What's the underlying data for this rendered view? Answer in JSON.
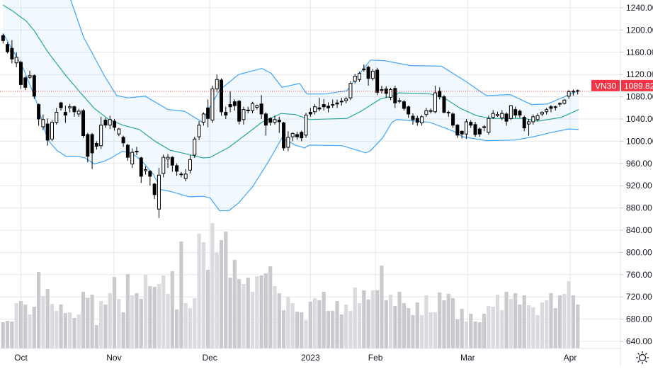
{
  "chart_data": {
    "type": "candlestick",
    "symbol": "VN30",
    "last_price": "1089.82",
    "last_value": 1089.82,
    "ylim": [
      640,
      1240
    ],
    "y_ticks": [
      "1240.00",
      "1200.00",
      "1160.00",
      "1120.00",
      "1080.00",
      "1040.00",
      "1000.00",
      "960.00",
      "920.00",
      "880.00",
      "840.00",
      "800.00",
      "760.00",
      "720.00",
      "680.00",
      "640.00"
    ],
    "y_tick_values": [
      1240,
      1200,
      1160,
      1120,
      1080,
      1040,
      1000,
      960,
      920,
      880,
      840,
      800,
      760,
      720,
      680,
      640
    ],
    "x_ticks": [
      {
        "label": "Oct",
        "index": 4
      },
      {
        "label": "Nov",
        "index": 24.9
      },
      {
        "label": "Dec",
        "index": 46.4
      },
      {
        "label": "2023",
        "index": 69
      },
      {
        "label": "Feb",
        "index": 83.6
      },
      {
        "label": "Mar",
        "index": 104.3
      },
      {
        "label": "Apr",
        "index": 127.3
      }
    ],
    "open": [
      1190,
      1174,
      1167,
      1141,
      1142,
      1114,
      1115,
      1118,
      1066,
      1026,
      1031,
      1004,
      1034,
      1069,
      1052,
      1060,
      1062,
      1049,
      1055,
      1012,
      1012,
      996,
      992,
      1038,
      1029,
      1036,
      1013,
      1007,
      993,
      959,
      982,
      970,
      947,
      946,
      923,
      878,
      942,
      968,
      971,
      956,
      941,
      933,
      948,
      975,
      1008,
      1034,
      1060,
      1038,
      1094,
      1110,
      1052,
      1066,
      1071,
      1072,
      1039,
      1056,
      1055,
      1061,
      1067,
      1049,
      1041,
      1034,
      1038,
      1033,
      989,
      1008,
      1012,
      1016,
      1011,
      1052,
      1053,
      1060,
      1066,
      1063,
      1066,
      1069,
      1072,
      1073,
      1078,
      1108,
      1111,
      1130,
      1133,
      1113,
      1128,
      1093,
      1094,
      1079,
      1095,
      1073,
      1071,
      1062,
      1045,
      1041,
      1033,
      1048,
      1054,
      1053,
      1090,
      1080,
      1052,
      1049,
      1029,
      1018,
      1013,
      1034,
      1030,
      1022,
      1026,
      1016,
      1043,
      1046,
      1042,
      1049,
      1041,
      1057,
      1054,
      1043,
      1031,
      1035,
      1039,
      1049,
      1053,
      1062,
      1062,
      1068,
      1068,
      1081,
      1090,
      1091
    ],
    "high": [
      1193,
      1178,
      1182,
      1160,
      1145,
      1117,
      1127,
      1120,
      1068,
      1048,
      1041,
      1038,
      1060,
      1071,
      1064,
      1067,
      1064,
      1058,
      1058,
      1015,
      1015,
      1000,
      1044,
      1042,
      1046,
      1040,
      1024,
      1010,
      995,
      987,
      990,
      972,
      955,
      948,
      925,
      952,
      976,
      977,
      973,
      960,
      945,
      950,
      975,
      1008,
      1036,
      1052,
      1075,
      1100,
      1120,
      1113,
      1062,
      1090,
      1075,
      1074,
      1062,
      1062,
      1071,
      1066,
      1083,
      1052,
      1043,
      1046,
      1044,
      1035,
      1018,
      1016,
      1017,
      1019,
      1051,
      1060,
      1067,
      1078,
      1076,
      1070,
      1075,
      1075,
      1078,
      1080,
      1108,
      1121,
      1125,
      1138,
      1136,
      1130,
      1132,
      1100,
      1099,
      1096,
      1100,
      1078,
      1074,
      1064,
      1050,
      1046,
      1047,
      1060,
      1059,
      1100,
      1097,
      1083,
      1055,
      1052,
      1031,
      1019,
      1040,
      1038,
      1035,
      1025,
      1029,
      1046,
      1056,
      1053,
      1056,
      1052,
      1065,
      1062,
      1057,
      1046,
      1040,
      1048,
      1050,
      1054,
      1060,
      1065,
      1064,
      1070,
      1076,
      1092,
      1093,
      1093
    ],
    "low": [
      1176,
      1158,
      1140,
      1133,
      1094,
      1092,
      1112,
      1076,
      1028,
      1020,
      992,
      1000,
      1030,
      1055,
      1033,
      1052,
      1044,
      1044,
      1006,
      962,
      950,
      985,
      986,
      1024,
      1022,
      1019,
      1009,
      990,
      965,
      952,
      975,
      925,
      940,
      920,
      896,
      862,
      935,
      952,
      945,
      938,
      935,
      928,
      942,
      970,
      1002,
      1028,
      1025,
      1033,
      1088,
      1046,
      1040,
      1052,
      1055,
      1030,
      1030,
      1050,
      1050,
      1057,
      1040,
      1010,
      1028,
      1030,
      1015,
      983,
      982,
      1000,
      1003,
      1000,
      1006,
      1044,
      1048,
      1054,
      1055,
      1052,
      1060,
      1060,
      1064,
      1068,
      1074,
      1104,
      1107,
      1125,
      1100,
      1109,
      1083,
      1086,
      1078,
      1074,
      1060,
      1068,
      1055,
      1042,
      1030,
      1028,
      1028,
      1044,
      1050,
      1050,
      1075,
      1050,
      1044,
      1024,
      1006,
      1005,
      1004,
      1024,
      1008,
      1008,
      1018,
      1012,
      1040,
      1044,
      1038,
      1028,
      1038,
      1042,
      1042,
      1018,
      1010,
      1030,
      1036,
      1045,
      1048,
      1052,
      1055,
      1062,
      1066,
      1076,
      1082,
      1084
    ],
    "close": [
      1181,
      1161,
      1148,
      1151,
      1102,
      1097,
      1118,
      1081,
      1040,
      1039,
      1002,
      1034,
      1052,
      1060,
      1047,
      1062,
      1053,
      1054,
      1010,
      973,
      979,
      991,
      1029,
      1029,
      1039,
      1025,
      1022,
      997,
      971,
      980,
      981,
      937,
      949,
      937,
      904,
      939,
      971,
      971,
      957,
      946,
      940,
      941,
      967,
      1004,
      1029,
      1049,
      1041,
      1094,
      1111,
      1053,
      1047,
      1062,
      1064,
      1036,
      1057,
      1055,
      1068,
      1064,
      1049,
      1029,
      1034,
      1039,
      1035,
      988,
      1007,
      1014,
      1008,
      1006,
      1047,
      1049,
      1062,
      1058,
      1062,
      1060,
      1065,
      1067,
      1071,
      1076,
      1104,
      1117,
      1122,
      1129,
      1113,
      1126,
      1088,
      1092,
      1086,
      1093,
      1069,
      1072,
      1059,
      1049,
      1039,
      1034,
      1044,
      1055,
      1055,
      1087,
      1080,
      1052,
      1051,
      1029,
      1011,
      1013,
      1035,
      1029,
      1012,
      1013,
      1025,
      1041,
      1050,
      1048,
      1050,
      1036,
      1064,
      1047,
      1047,
      1024,
      1035,
      1044,
      1046,
      1052,
      1057,
      1059,
      1061,
      1067,
      1074,
      1089,
      1089,
      1089.82
    ],
    "volume_relative": [
      37,
      39,
      38,
      64,
      67,
      62,
      48,
      59,
      108,
      74,
      84,
      63,
      53,
      62,
      50,
      51,
      43,
      48,
      80,
      71,
      76,
      33,
      67,
      62,
      78,
      101,
      70,
      51,
      105,
      75,
      78,
      70,
      104,
      88,
      87,
      91,
      103,
      77,
      109,
      55,
      151,
      64,
      57,
      71,
      162,
      150,
      111,
      177,
      135,
      153,
      165,
      100,
      125,
      98,
      91,
      100,
      80,
      102,
      103,
      106,
      116,
      88,
      78,
      54,
      73,
      64,
      52,
      51,
      40,
      66,
      71,
      68,
      80,
      53,
      53,
      67,
      48,
      62,
      53,
      86,
      64,
      82,
      69,
      82,
      82,
      117,
      68,
      76,
      60,
      80,
      64,
      57,
      47,
      65,
      47,
      75,
      51,
      51,
      79,
      68,
      77,
      71,
      41,
      56,
      38,
      49,
      38,
      37,
      49,
      60,
      59,
      76,
      54,
      80,
      70,
      78,
      62,
      75,
      61,
      58,
      47,
      65,
      68,
      78,
      57,
      75,
      77,
      95,
      75,
      62
    ],
    "bollinger": {
      "upper": [
        [
          0,
          1420
        ],
        [
          10,
          1320
        ],
        [
          15.2,
          1254
        ],
        [
          18.1,
          1187
        ],
        [
          22.8,
          1117
        ],
        [
          25.5,
          1082
        ],
        [
          28,
          1078
        ],
        [
          31.9,
          1081
        ],
        [
          37,
          1057
        ],
        [
          40.7,
          1054
        ],
        [
          44.6,
          1035
        ],
        [
          48.6,
          1092
        ],
        [
          52.9,
          1120
        ],
        [
          58.1,
          1131
        ],
        [
          60.2,
          1122
        ],
        [
          62.6,
          1097
        ],
        [
          66.6,
          1104
        ],
        [
          68.2,
          1085
        ],
        [
          72.4,
          1085
        ],
        [
          77.2,
          1091
        ],
        [
          79.3,
          1114
        ],
        [
          82.5,
          1146
        ],
        [
          85.6,
          1145
        ],
        [
          91.5,
          1136
        ],
        [
          98.4,
          1135
        ],
        [
          101,
          1122
        ],
        [
          103.8,
          1108
        ],
        [
          108.5,
          1082
        ],
        [
          113.8,
          1084
        ],
        [
          118.6,
          1066
        ],
        [
          122.2,
          1067
        ],
        [
          129.2,
          1091
        ]
      ],
      "middle": [
        [
          0,
          1245
        ],
        [
          2,
          1235
        ],
        [
          5.2,
          1216
        ],
        [
          7,
          1199
        ],
        [
          10,
          1161
        ],
        [
          14.1,
          1118
        ],
        [
          17.3,
          1088
        ],
        [
          20.5,
          1059
        ],
        [
          23.6,
          1040
        ],
        [
          26.8,
          1029
        ],
        [
          30.6,
          1021
        ],
        [
          34.3,
          999
        ],
        [
          37.5,
          984
        ],
        [
          40.7,
          978
        ],
        [
          44.9,
          970
        ],
        [
          46.5,
          971
        ],
        [
          50.7,
          989
        ],
        [
          54.5,
          1012
        ],
        [
          58.1,
          1034
        ],
        [
          62.4,
          1050
        ],
        [
          65.6,
          1048
        ],
        [
          68.8,
          1039
        ],
        [
          77.2,
          1041
        ],
        [
          80.4,
          1054
        ],
        [
          84.7,
          1076
        ],
        [
          87.9,
          1082
        ],
        [
          88.8,
          1087
        ],
        [
          95.8,
          1085
        ],
        [
          99,
          1078
        ],
        [
          102.7,
          1059
        ],
        [
          106.3,
          1046
        ],
        [
          109.5,
          1041
        ],
        [
          117,
          1041
        ],
        [
          120.1,
          1036
        ],
        [
          125.4,
          1043
        ],
        [
          129.2,
          1057
        ]
      ],
      "lower": [
        [
          0,
          1194
        ],
        [
          4.6,
          1130
        ],
        [
          7.3,
          1076
        ],
        [
          10,
          1003
        ],
        [
          12,
          984
        ],
        [
          14.1,
          973
        ],
        [
          16.8,
          973
        ],
        [
          18.4,
          970
        ],
        [
          20.5,
          959
        ],
        [
          22.7,
          964
        ],
        [
          24.3,
          970
        ],
        [
          26.8,
          982
        ],
        [
          29,
          978
        ],
        [
          31.1,
          965
        ],
        [
          33.8,
          940
        ],
        [
          35.4,
          913
        ],
        [
          37.5,
          910
        ],
        [
          41.8,
          900
        ],
        [
          44.9,
          901
        ],
        [
          46.5,
          898
        ],
        [
          48.6,
          875
        ],
        [
          50.7,
          875
        ],
        [
          52.9,
          889
        ],
        [
          56.1,
          919
        ],
        [
          59.7,
          965
        ],
        [
          62.6,
          1006
        ],
        [
          65.6,
          993
        ],
        [
          67.7,
          988
        ],
        [
          68.8,
          993
        ],
        [
          76.1,
          992
        ],
        [
          81.5,
          979
        ],
        [
          82.5,
          983
        ],
        [
          85.2,
          1006
        ],
        [
          87.3,
          1034
        ],
        [
          88.4,
          1039
        ],
        [
          95.8,
          1034
        ],
        [
          101.1,
          1018
        ],
        [
          103.1,
          1008
        ],
        [
          108.5,
          1001
        ],
        [
          114.9,
          1002
        ],
        [
          119,
          1008
        ],
        [
          123.3,
          1016
        ],
        [
          127,
          1022
        ],
        [
          129.2,
          1021
        ]
      ]
    },
    "colors": {
      "up_body": "#ffffff",
      "down_body": "#000000",
      "wick": "#000000",
      "band_line": "#42a5f5",
      "band_fill": "#2196f3",
      "basis_line": "#26a69a",
      "volume_up": "#dadbde",
      "volume_down": "#c9cace",
      "price_line": "#f23645",
      "label_bg": "#f23645",
      "grid": "#e6e7ea"
    }
  },
  "settings_icon": "gear-icon"
}
